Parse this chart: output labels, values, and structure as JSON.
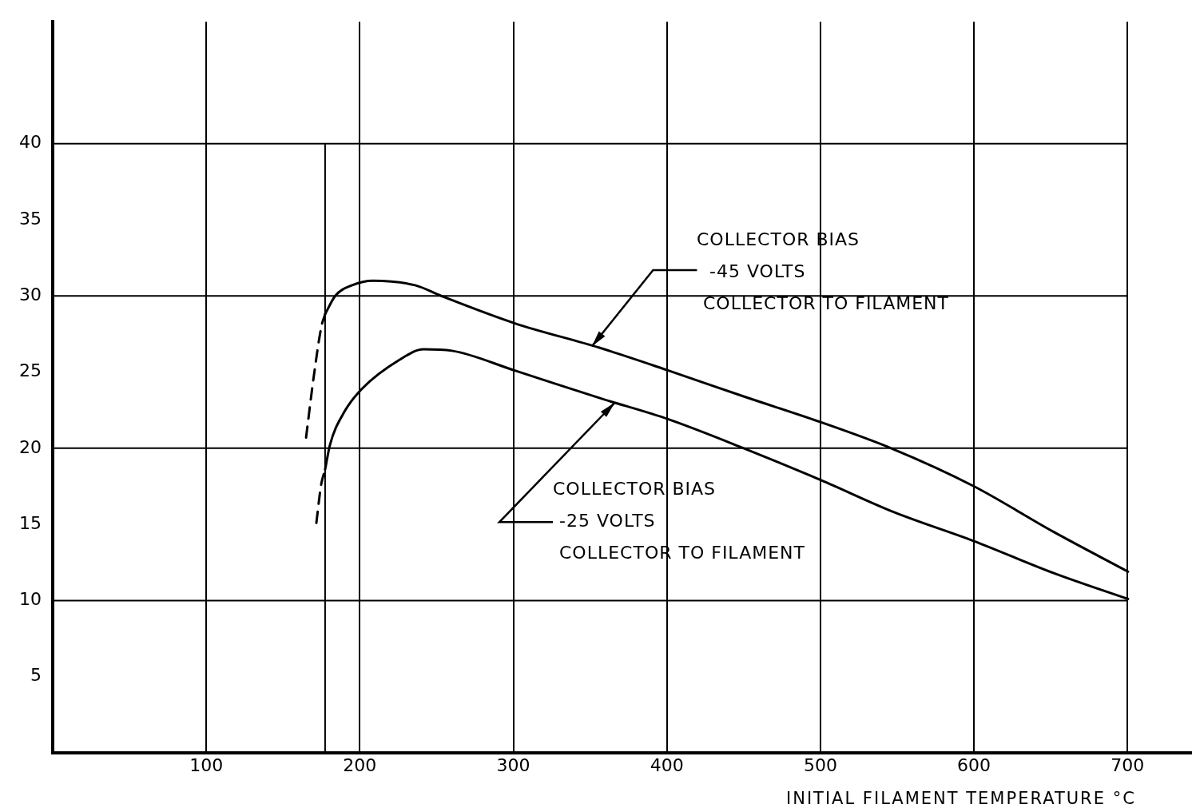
{
  "chart_data": {
    "type": "line",
    "xlabel": "INITIAL FILAMENT TEMPERATURE °C",
    "xlim": [
      0,
      742
    ],
    "xticks": [
      100,
      200,
      300,
      400,
      500,
      600,
      700
    ],
    "ylim": [
      0,
      48
    ],
    "yticks": [
      5,
      10,
      15,
      20,
      25,
      30,
      35,
      40
    ],
    "grid": "x",
    "legend": false,
    "marker": "none",
    "series": [
      {
        "color": "#000000",
        "line_style": "solid",
        "x": [
          177.4,
          184,
          195,
          208.6,
          236,
          253,
          301,
          356,
          401,
          450,
          500.5,
          546,
          600,
          652,
          700.3
        ],
        "values": [
          28.8,
          30.0,
          30.7,
          31.0,
          30.7,
          30.0,
          28.2,
          26.6,
          25.1,
          23.4,
          21.7,
          20.0,
          17.5,
          14.5,
          11.9
        ]
      },
      {
        "color": "#000000",
        "line_style": "dashed",
        "x": [
          165,
          170,
          175,
          177.4
        ],
        "values": [
          20.7,
          24.7,
          28.0,
          28.8
        ]
      },
      {
        "color": "#000000",
        "line_style": "solid",
        "x": [
          177.4,
          180.5,
          190,
          201.4,
          225.8,
          241.4,
          260,
          301,
          356,
          401,
          450,
          500.5,
          548,
          600,
          652,
          700.3
        ],
        "values": [
          18.6,
          20.2,
          22.4,
          23.9,
          25.8,
          26.5,
          26.4,
          25.1,
          23.3,
          21.9,
          20.0,
          17.9,
          15.8,
          13.9,
          11.8,
          10.1
        ]
      },
      {
        "color": "#000000",
        "line_style": "dashed",
        "x": [
          171.7,
          174.8,
          177.4
        ],
        "values": [
          15.1,
          17.6,
          18.6
        ]
      }
    ],
    "ref_lines": [
      {
        "axis": "y",
        "value": 10
      },
      {
        "axis": "y",
        "value": 20
      },
      {
        "axis": "y",
        "value": 30
      },
      {
        "axis": "y",
        "value": 40
      },
      {
        "axis": "x",
        "value": 177.4
      }
    ],
    "annotations": [
      {
        "text": "COLLECTOR BIAS\n  -45 VOLTS\n COLLECTOR TO FILAMENT",
        "x": 351,
        "y": 26.7
      },
      {
        "text": "COLLECTOR BIAS\n -25 VOLTS\n COLLECTOR TO FILAMENT",
        "x": 366,
        "y": 23.0
      }
    ]
  }
}
